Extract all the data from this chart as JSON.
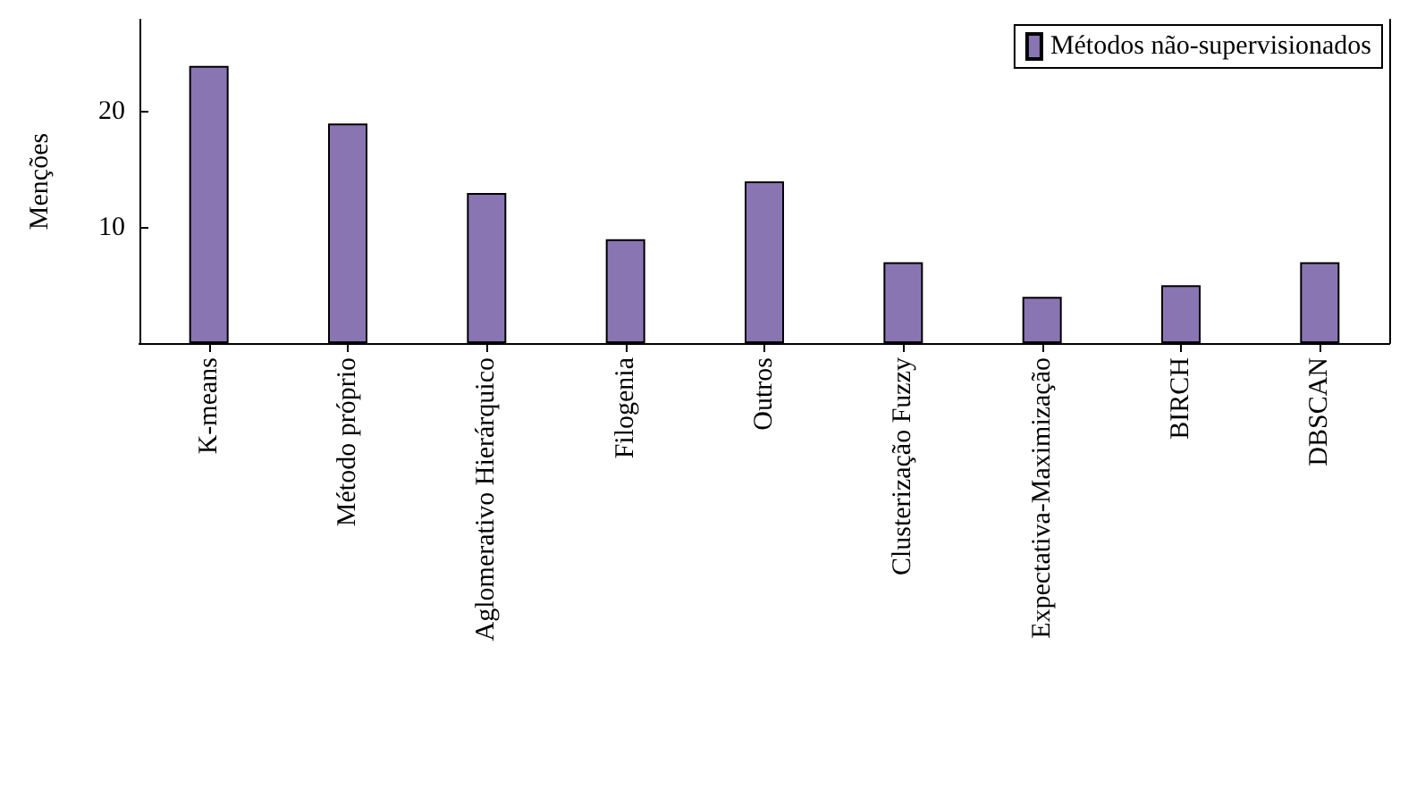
{
  "chart_data": {
    "type": "bar",
    "ylabel": "Menções",
    "categories": [
      "K-means",
      "Método próprio",
      "Aglomerativo Hierárquico",
      "Filogenia",
      "Outros",
      "Clusterização Fuzzy",
      "Expectativa-Maximização",
      "BIRCH",
      "DBSCAN"
    ],
    "series": [
      {
        "name": "Métodos não-supervisionados",
        "color": "#8a75b3",
        "values": [
          24,
          19,
          13,
          9,
          14,
          7,
          4,
          5,
          7
        ]
      }
    ],
    "ylim": [
      0,
      28
    ],
    "yticks": [
      10,
      20
    ],
    "grid": false,
    "legend": "top right"
  }
}
